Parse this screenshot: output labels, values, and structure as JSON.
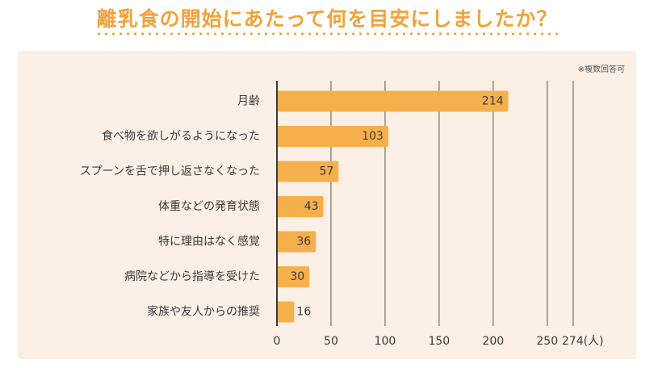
{
  "title": "離乳食の開始にあたって何を目安にしましたか？",
  "note": "※複数回答可",
  "colors": {
    "bar": "#f6b04b",
    "title": "#f0a33c",
    "panel": "#fcefe5",
    "grid": "#8a7f76"
  },
  "chart_data": {
    "type": "bar",
    "orientation": "horizontal",
    "categories": [
      "月齢",
      "食べ物を欲しがるようになった",
      "スプーンを舌で押し返さなくなった",
      "体重などの発育状態",
      "特に理由はなく感覚",
      "病院などから指導を受けた",
      "家族や友人からの推奨"
    ],
    "values": [
      214,
      103,
      57,
      43,
      36,
      30,
      16
    ],
    "xticks": [
      "0",
      "50",
      "100",
      "150",
      "200",
      "250",
      "274(人)"
    ],
    "xtick_values": [
      0,
      50,
      100,
      150,
      200,
      250,
      274
    ],
    "xlim": [
      0,
      274
    ],
    "grid": true,
    "title": "離乳食の開始にあたって何を目安にしましたか？"
  }
}
